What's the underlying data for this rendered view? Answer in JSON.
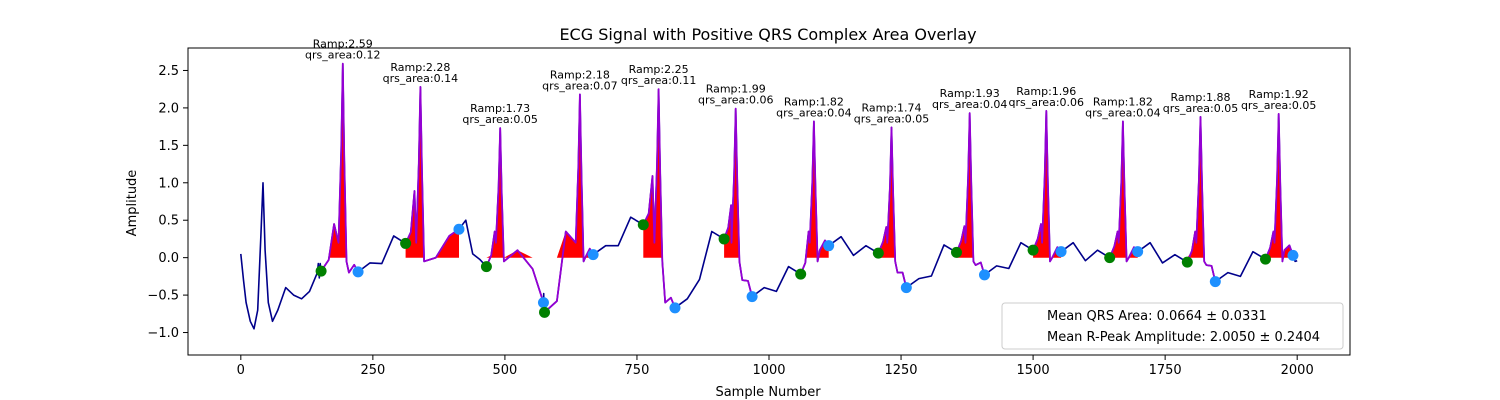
{
  "chart_data": {
    "type": "line",
    "title": "ECG Signal with Positive QRS Complex Area Overlay",
    "xlabel": "Sample Number",
    "ylabel": "Amplitude",
    "xlim": [
      -100,
      2100
    ],
    "ylim": [
      -1.3,
      2.8
    ],
    "xticks": [
      0,
      250,
      500,
      750,
      1000,
      1250,
      1500,
      1750,
      2000
    ],
    "yticks": [
      -1.0,
      -0.5,
      0.0,
      0.5,
      1.0,
      1.5,
      2.0,
      2.5
    ],
    "ytick_labels": [
      "−1.0",
      "−0.5",
      "0.0",
      "0.5",
      "1.0",
      "1.5",
      "2.0",
      "2.5"
    ],
    "grid": false,
    "colors": {
      "signal": "#00008b",
      "qrs_segment": "#9400d3",
      "qrs_area": "#ff0000",
      "onset": "#008000",
      "offset": "#1e90ff"
    },
    "signal_start": [
      [
        0,
        0.05
      ],
      [
        5,
        -0.3
      ],
      [
        10,
        -0.6
      ],
      [
        18,
        -0.85
      ],
      [
        25,
        -0.95
      ],
      [
        32,
        -0.7
      ],
      [
        38,
        0.3
      ],
      [
        42,
        1.0
      ],
      [
        46,
        0.1
      ],
      [
        52,
        -0.6
      ],
      [
        60,
        -0.85
      ],
      [
        70,
        -0.7
      ],
      [
        85,
        -0.4
      ],
      [
        100,
        -0.5
      ],
      [
        115,
        -0.55
      ],
      [
        130,
        -0.45
      ],
      [
        145,
        -0.2
      ]
    ],
    "beats": [
      {
        "r": 193,
        "amp": 2.59,
        "qrs_area": 0.12,
        "onset": [
          152,
          -0.18
        ],
        "offset": [
          222,
          -0.19
        ],
        "pre": 0.1,
        "post": -0.2
      },
      {
        "r": 340,
        "amp": 2.28,
        "qrs_area": 0.14,
        "onset": [
          312,
          0.19
        ],
        "offset": [
          413,
          0.38
        ],
        "pre": 0.35,
        "post": 0.0
      },
      {
        "r": 491,
        "amp": 1.73,
        "qrs_area": 0.05,
        "onset": [
          465,
          -0.12
        ],
        "offset": [
          573,
          -0.6
        ],
        "pre": 0.0,
        "post": 0.1
      },
      {
        "r": 642,
        "amp": 2.18,
        "qrs_area": 0.07,
        "onset": [
          575,
          -0.73
        ],
        "offset": [
          667,
          0.04
        ],
        "pre": 0.0,
        "post": 0.0
      },
      {
        "r": 791,
        "amp": 2.25,
        "qrs_area": 0.11,
        "onset": [
          762,
          0.44
        ],
        "offset": [
          822,
          -0.67
        ],
        "pre": 0.3,
        "post": -0.6
      },
      {
        "r": 937,
        "amp": 1.99,
        "qrs_area": 0.06,
        "onset": [
          915,
          0.25
        ],
        "offset": [
          968,
          -0.52
        ],
        "pre": 0.1,
        "post": -0.3
      },
      {
        "r": 1085,
        "amp": 1.82,
        "qrs_area": 0.04,
        "onset": [
          1060,
          -0.22
        ],
        "offset": [
          1113,
          0.16
        ],
        "pre": 0.0,
        "post": 0.1
      },
      {
        "r": 1232,
        "amp": 1.74,
        "qrs_area": 0.05,
        "onset": [
          1207,
          0.06
        ],
        "offset": [
          1260,
          -0.4
        ],
        "pre": 0.0,
        "post": -0.2
      },
      {
        "r": 1380,
        "amp": 1.93,
        "qrs_area": 0.04,
        "onset": [
          1355,
          0.07
        ],
        "offset": [
          1408,
          -0.23
        ],
        "pre": 0.0,
        "post": -0.1
      },
      {
        "r": 1525,
        "amp": 1.96,
        "qrs_area": 0.06,
        "onset": [
          1500,
          0.1
        ],
        "offset": [
          1553,
          0.08
        ],
        "pre": 0.0,
        "post": 0.0
      },
      {
        "r": 1670,
        "amp": 1.82,
        "qrs_area": 0.04,
        "onset": [
          1645,
          0.0
        ],
        "offset": [
          1698,
          0.08
        ],
        "pre": 0.0,
        "post": 0.0
      },
      {
        "r": 1817,
        "amp": 1.88,
        "qrs_area": 0.05,
        "onset": [
          1792,
          -0.06
        ],
        "offset": [
          1845,
          -0.32
        ],
        "pre": 0.0,
        "post": -0.1
      },
      {
        "r": 1965,
        "amp": 1.92,
        "qrs_area": 0.05,
        "onset": [
          1940,
          -0.02
        ],
        "offset": [
          1992,
          0.03
        ],
        "pre": 0.0,
        "post": 0.1
      }
    ],
    "signal_end": [
      2000,
      -0.04
    ],
    "legend": {
      "placement": "lower-right",
      "entries": [
        "Mean QRS Area: 0.0664 ± 0.0331",
        "Mean R-Peak Amplitude: 2.0050 ± 0.2404"
      ]
    }
  }
}
